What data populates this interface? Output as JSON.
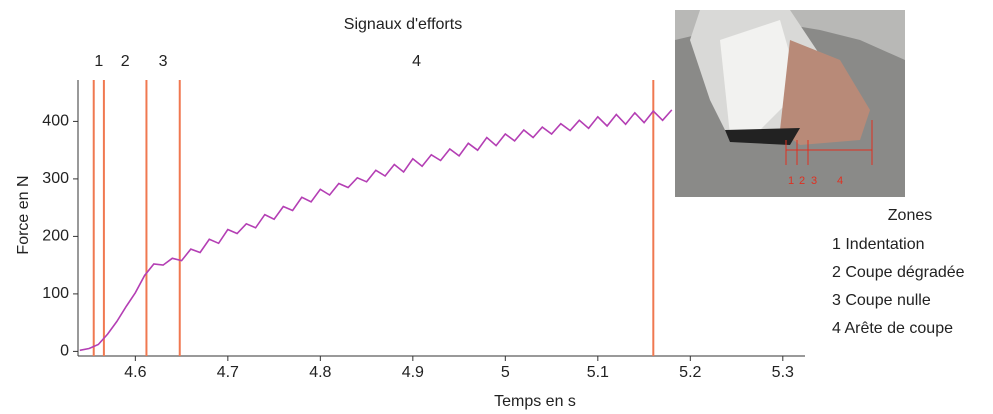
{
  "chart_data": {
    "type": "line",
    "title": "Signaux d'efforts",
    "x_label": "Temps en s",
    "y_label": "Force en N",
    "x": [
      4.54,
      4.55,
      4.56,
      4.57,
      4.58,
      4.59,
      4.6,
      4.61,
      4.62,
      4.63,
      4.64,
      4.65,
      4.66,
      4.67,
      4.68,
      4.69,
      4.7,
      4.71,
      4.72,
      4.73,
      4.74,
      4.75,
      4.76,
      4.77,
      4.78,
      4.79,
      4.8,
      4.81,
      4.82,
      4.83,
      4.84,
      4.85,
      4.86,
      4.87,
      4.88,
      4.89,
      4.9,
      4.91,
      4.92,
      4.93,
      4.94,
      4.95,
      4.96,
      4.97,
      4.98,
      4.99,
      5.0,
      5.01,
      5.02,
      5.03,
      5.04,
      5.05,
      5.06,
      5.07,
      5.08,
      5.09,
      5.1,
      5.11,
      5.12,
      5.13,
      5.14,
      5.15,
      5.16,
      5.17,
      5.18
    ],
    "series": [
      {
        "color": "#b43fb4",
        "values": [
          2,
          5,
          12,
          30,
          52,
          78,
          102,
          132,
          152,
          150,
          162,
          158,
          178,
          172,
          195,
          188,
          212,
          205,
          222,
          215,
          238,
          230,
          252,
          245,
          268,
          260,
          282,
          272,
          292,
          285,
          302,
          295,
          315,
          305,
          325,
          312,
          335,
          322,
          342,
          332,
          352,
          340,
          362,
          350,
          372,
          358,
          378,
          366,
          385,
          372,
          390,
          378,
          396,
          384,
          402,
          388,
          408,
          392,
          412,
          395,
          415,
          398,
          418,
          402,
          420
        ]
      }
    ],
    "xlim": [
      4.538,
      5.324
    ],
    "ylim": [
      -8,
      472
    ],
    "xticks": [
      4.6,
      4.7,
      4.8,
      4.9,
      5,
      5.1,
      5.2,
      5.3
    ],
    "yticks": [
      0,
      100,
      200,
      300,
      400
    ],
    "zone_markers": [
      4.555,
      4.566,
      4.612,
      4.648,
      5.16
    ],
    "marker_color": "#f07850",
    "zone_labels": [
      "1",
      "2",
      "3",
      "4"
    ],
    "photo_labels": [
      "1",
      "2",
      "3",
      "4"
    ],
    "legend_title": "Zones",
    "legend_items": [
      "1 Indentation",
      "2 Coupe dégradée",
      "3 Coupe nulle",
      "4 Arête de coupe"
    ]
  }
}
